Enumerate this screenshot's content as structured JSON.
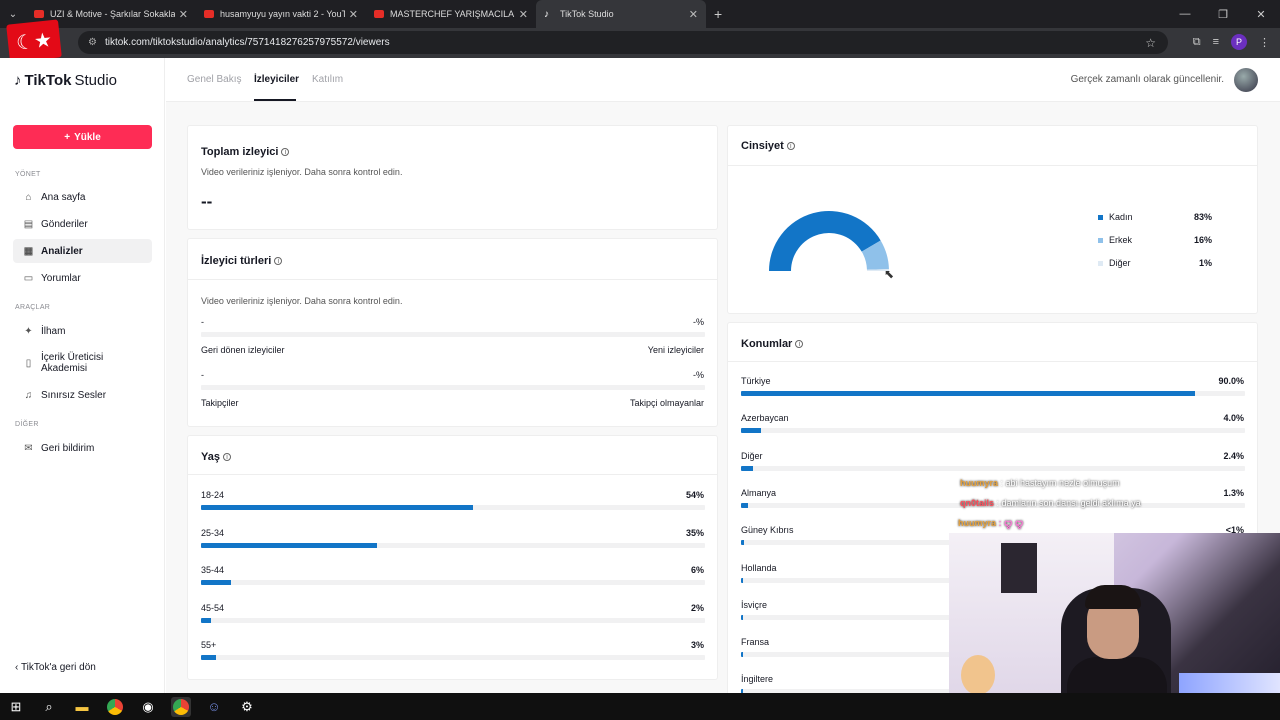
{
  "browser": {
    "tabs": [
      {
        "label": "UZI & Motive - Şarkılar Sokakla",
        "active": false
      },
      {
        "label": "husamyuyu yayın vakti 2 - YouT",
        "active": false
      },
      {
        "label": "MASTERCHEF YARIŞMACILARININ",
        "active": false
      },
      {
        "label": "TikTok Studio",
        "active": true
      }
    ],
    "url": "tiktok.com/tiktokstudio/analytics/7571418276257975572/viewers",
    "profile_initial": "P"
  },
  "sidebar": {
    "logo": "TikTok",
    "logo_suffix": "Studio",
    "upload_label": "Yükle",
    "sections": [
      {
        "label": "YÖNET",
        "items": [
          "Ana sayfa",
          "Gönderiler",
          "Analizler",
          "Yorumlar"
        ]
      },
      {
        "label": "ARAÇLAR",
        "items": [
          "İlham",
          "İçerik Üreticisi Akademisi",
          "Sınırsız Sesler"
        ]
      },
      {
        "label": "DİĞER",
        "items": [
          "Geri bildirim"
        ]
      }
    ],
    "active_item": "Analizler",
    "back_label": "TikTok'a geri dön"
  },
  "header": {
    "tabs": [
      "Genel Bakış",
      "İzleyiciler",
      "Katılım"
    ],
    "active_tab": "İzleyiciler",
    "realtime_note": "Gerçek zamanlı olarak güncellenir."
  },
  "total_viewers": {
    "title": "Toplam izleyici",
    "note": "Video verileriniz işleniyor. Daha sonra kontrol edin.",
    "value": "--"
  },
  "viewer_types": {
    "title": "İzleyici türleri",
    "note": "Video verileriniz işleniyor. Daha sonra kontrol edin.",
    "rows": [
      {
        "left_value": "-",
        "right_value": "-%",
        "left_label": "Geri dönen izleyiciler",
        "right_label": "Yeni izleyiciler"
      },
      {
        "left_value": "-",
        "right_value": "-%",
        "left_label": "Takipçiler",
        "right_label": "Takipçi olmayanlar"
      }
    ]
  },
  "age": {
    "title": "Yaş",
    "groups": [
      {
        "label": "18-24",
        "pct_text": "54%",
        "value": 54
      },
      {
        "label": "25-34",
        "pct_text": "35%",
        "value": 35
      },
      {
        "label": "35-44",
        "pct_text": "6%",
        "value": 6
      },
      {
        "label": "45-54",
        "pct_text": "2%",
        "value": 2
      },
      {
        "label": "55+",
        "pct_text": "3%",
        "value": 3
      }
    ]
  },
  "gender": {
    "title": "Cinsiyet",
    "items": [
      {
        "label": "Kadın",
        "pct_text": "83%",
        "value": 83,
        "color": "#1275c7"
      },
      {
        "label": "Erkek",
        "pct_text": "16%",
        "value": 16,
        "color": "#8fc1ea"
      },
      {
        "label": "Diğer",
        "pct_text": "1%",
        "value": 1,
        "color": "#dfeaf4"
      }
    ]
  },
  "locations": {
    "title": "Konumlar",
    "items": [
      {
        "label": "Türkiye",
        "pct_text": "90.0%",
        "value": 90.0
      },
      {
        "label": "Azerbaycan",
        "pct_text": "4.0%",
        "value": 4.0
      },
      {
        "label": "Diğer",
        "pct_text": "2.4%",
        "value": 2.4
      },
      {
        "label": "Almanya",
        "pct_text": "1.3%",
        "value": 1.3
      },
      {
        "label": "Güney Kıbrıs",
        "pct_text": "<1%",
        "value": 0.5
      },
      {
        "label": "Hollanda",
        "pct_text": "",
        "value": 0.3
      },
      {
        "label": "İsviçre",
        "pct_text": "",
        "value": 0.3
      },
      {
        "label": "Fransa",
        "pct_text": "",
        "value": 0.3
      },
      {
        "label": "İngiltere",
        "pct_text": "",
        "value": 0.3
      }
    ]
  },
  "chat": [
    {
      "name": "huumyra",
      "message": ": abi hastayım nezle olmuşum",
      "style": "gold"
    },
    {
      "name": "qn0tails",
      "message": ": damların son dansı geldi aklıma ya",
      "style": "red"
    },
    {
      "name": "huumyra",
      "message": ": ꨄ ꨄ",
      "style": "gold"
    }
  ],
  "colors": {
    "brand": "#fe2c55",
    "bar": "#1275c7"
  }
}
